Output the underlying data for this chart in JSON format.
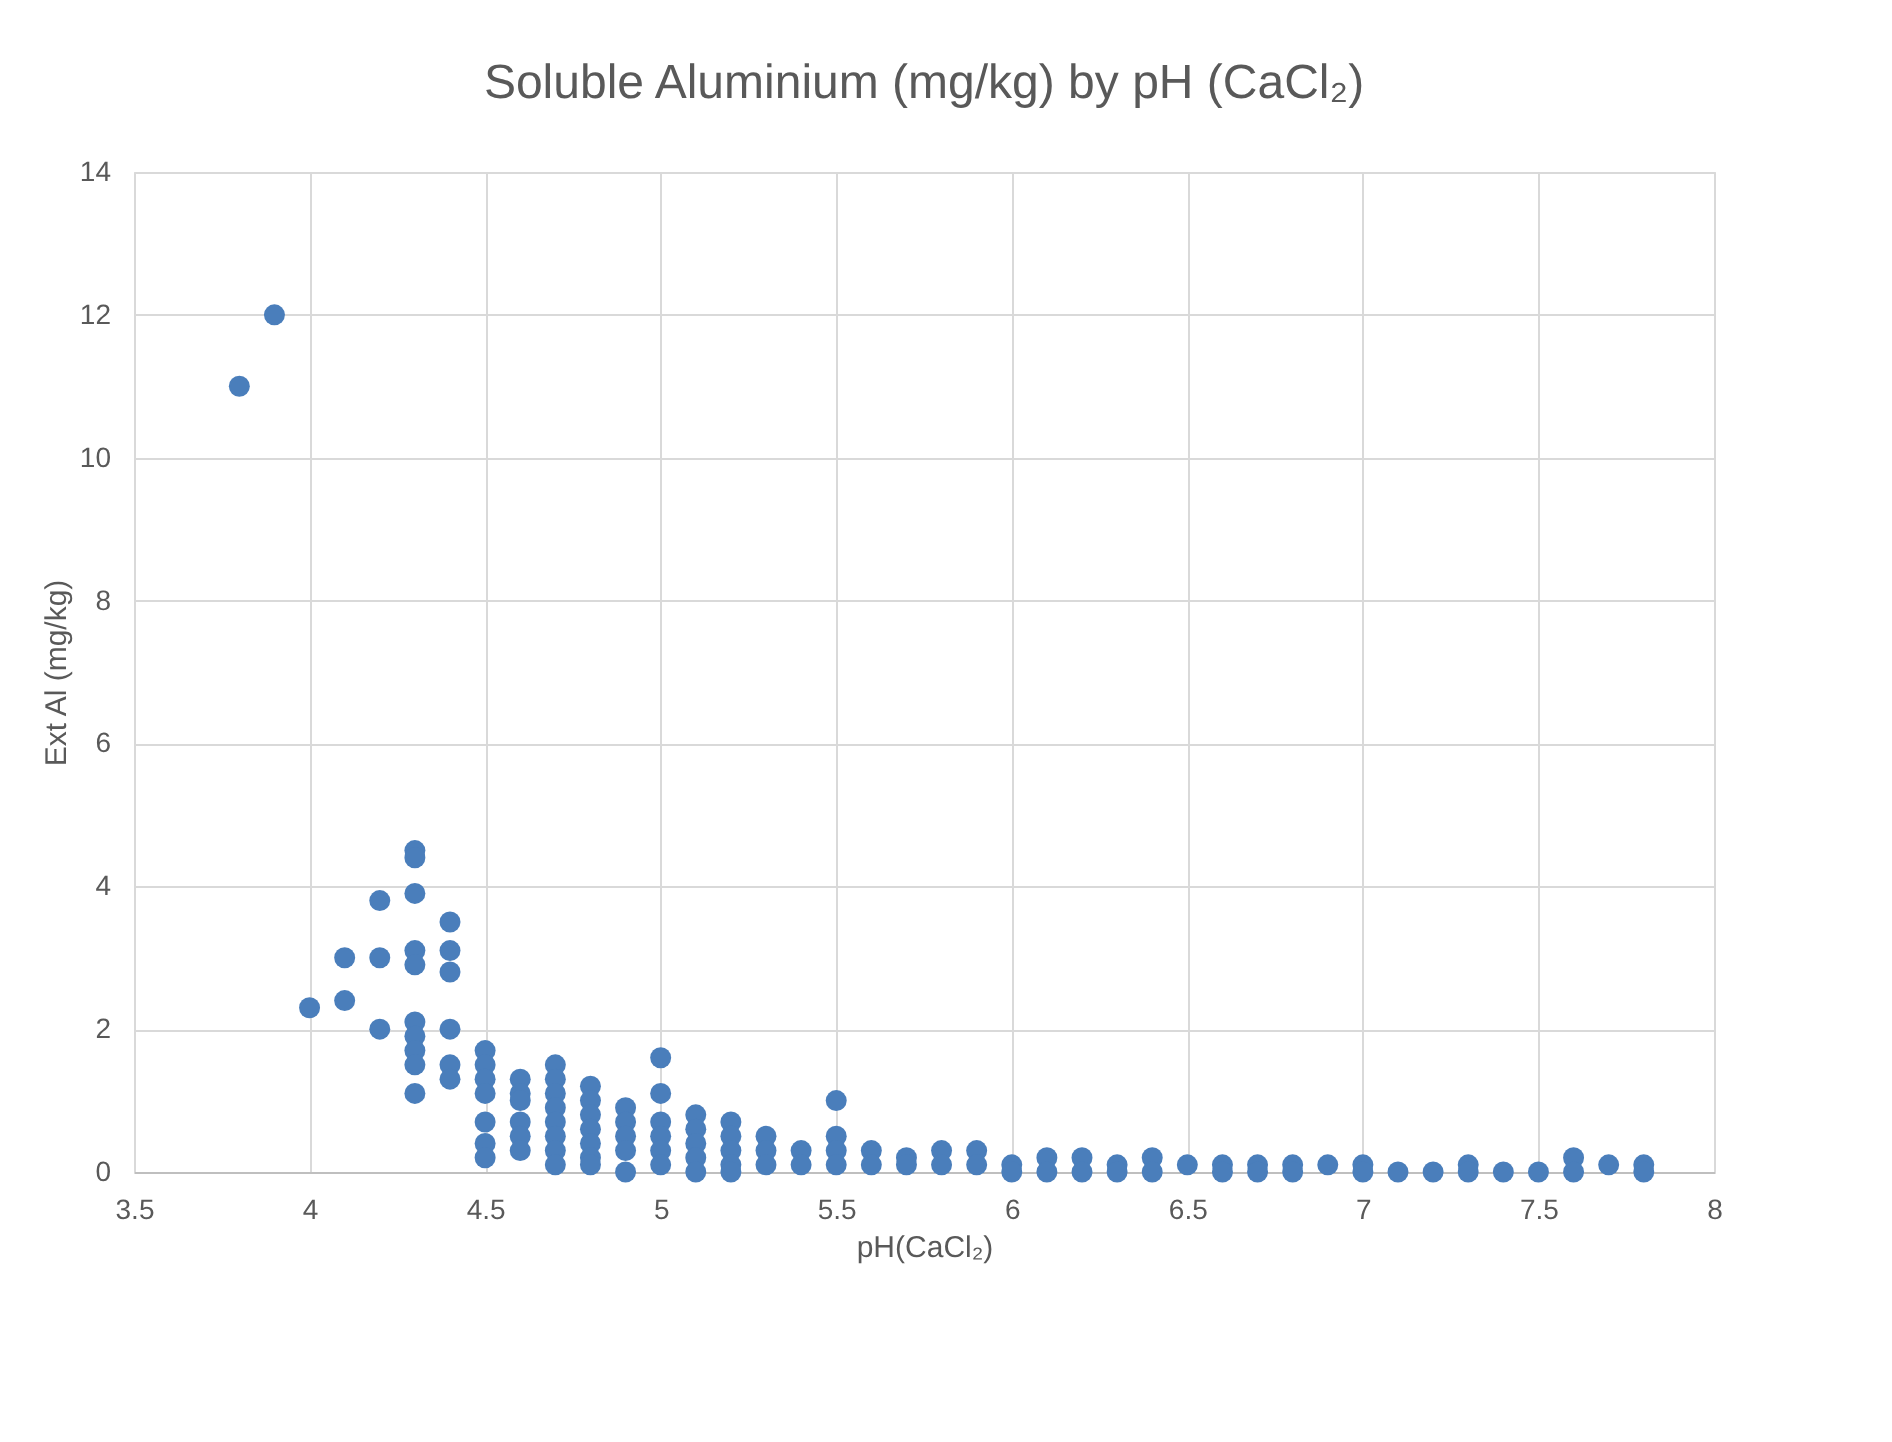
{
  "chart_data": {
    "type": "scatter",
    "title": "Soluble Aluminium (mg/kg) by pH (CaCl₂)",
    "xlabel": "pH(CaCl₂)",
    "ylabel": "Ext Al (mg/kg)",
    "xlim": [
      3.5,
      8
    ],
    "xticks": [
      3.5,
      4,
      4.5,
      5,
      5.5,
      6,
      6.5,
      7,
      7.5,
      8
    ],
    "ylim": [
      0,
      14
    ],
    "yticks": [
      0,
      2,
      4,
      6,
      8,
      10,
      12,
      14
    ],
    "grid": true,
    "marker": "circle",
    "series": [
      {
        "color": "#4a7ebb",
        "x": [
          3.8,
          3.9,
          4.0,
          4.1,
          4.1,
          4.2,
          4.2,
          4.2,
          4.3,
          4.3,
          4.3,
          4.3,
          4.3,
          4.3,
          4.3,
          4.3,
          4.3,
          4.3,
          4.4,
          4.4,
          4.4,
          4.4,
          4.4,
          4.4,
          4.5,
          4.5,
          4.5,
          4.5,
          4.5,
          4.5,
          4.5,
          4.6,
          4.6,
          4.6,
          4.6,
          4.6,
          4.6,
          4.7,
          4.7,
          4.7,
          4.7,
          4.7,
          4.7,
          4.7,
          4.7,
          4.8,
          4.8,
          4.8,
          4.8,
          4.8,
          4.8,
          4.8,
          4.9,
          4.9,
          4.9,
          4.9,
          4.9,
          5.0,
          5.0,
          5.0,
          5.0,
          5.0,
          5.0,
          5.1,
          5.1,
          5.1,
          5.1,
          5.1,
          5.2,
          5.2,
          5.2,
          5.2,
          5.2,
          5.3,
          5.3,
          5.3,
          5.4,
          5.4,
          5.5,
          5.5,
          5.5,
          5.5,
          5.6,
          5.6,
          5.7,
          5.7,
          5.8,
          5.8,
          5.9,
          5.9,
          6.0,
          6.0,
          6.1,
          6.1,
          6.2,
          6.2,
          6.3,
          6.3,
          6.4,
          6.4,
          6.5,
          6.6,
          6.6,
          6.7,
          6.7,
          6.8,
          6.8,
          6.9,
          7.0,
          7.0,
          7.1,
          7.2,
          7.3,
          7.3,
          7.4,
          7.5,
          7.6,
          7.6,
          7.7,
          7.8,
          7.8
        ],
        "values": [
          11,
          12,
          2.3,
          3.0,
          2.4,
          3.8,
          3.0,
          2.0,
          4.5,
          4.4,
          3.9,
          3.1,
          2.9,
          2.1,
          1.9,
          1.7,
          1.5,
          1.1,
          3.5,
          3.1,
          2.8,
          2.0,
          1.5,
          1.3,
          1.7,
          1.5,
          1.3,
          1.1,
          0.7,
          0.4,
          0.2,
          1.3,
          1.1,
          1.0,
          0.7,
          0.5,
          0.3,
          1.5,
          1.3,
          1.1,
          0.9,
          0.7,
          0.5,
          0.3,
          0.1,
          1.2,
          1.0,
          0.8,
          0.6,
          0.4,
          0.2,
          0.1,
          0.9,
          0.7,
          0.5,
          0.3,
          0.0,
          1.6,
          1.1,
          0.7,
          0.5,
          0.3,
          0.1,
          0.8,
          0.6,
          0.4,
          0.2,
          0.0,
          0.7,
          0.5,
          0.3,
          0.1,
          0.0,
          0.5,
          0.3,
          0.1,
          0.3,
          0.1,
          1.0,
          0.5,
          0.3,
          0.1,
          0.3,
          0.1,
          0.2,
          0.1,
          0.3,
          0.1,
          0.3,
          0.1,
          0.1,
          0.0,
          0.2,
          0.0,
          0.2,
          0.0,
          0.1,
          0.0,
          0.2,
          0.0,
          0.1,
          0.1,
          0.0,
          0.1,
          0.0,
          0.1,
          0.0,
          0.1,
          0.1,
          0.0,
          0.0,
          0.0,
          0.1,
          0.0,
          0.0,
          0.0,
          0.2,
          0.0,
          0.1,
          0.1,
          0.0
        ]
      }
    ]
  }
}
